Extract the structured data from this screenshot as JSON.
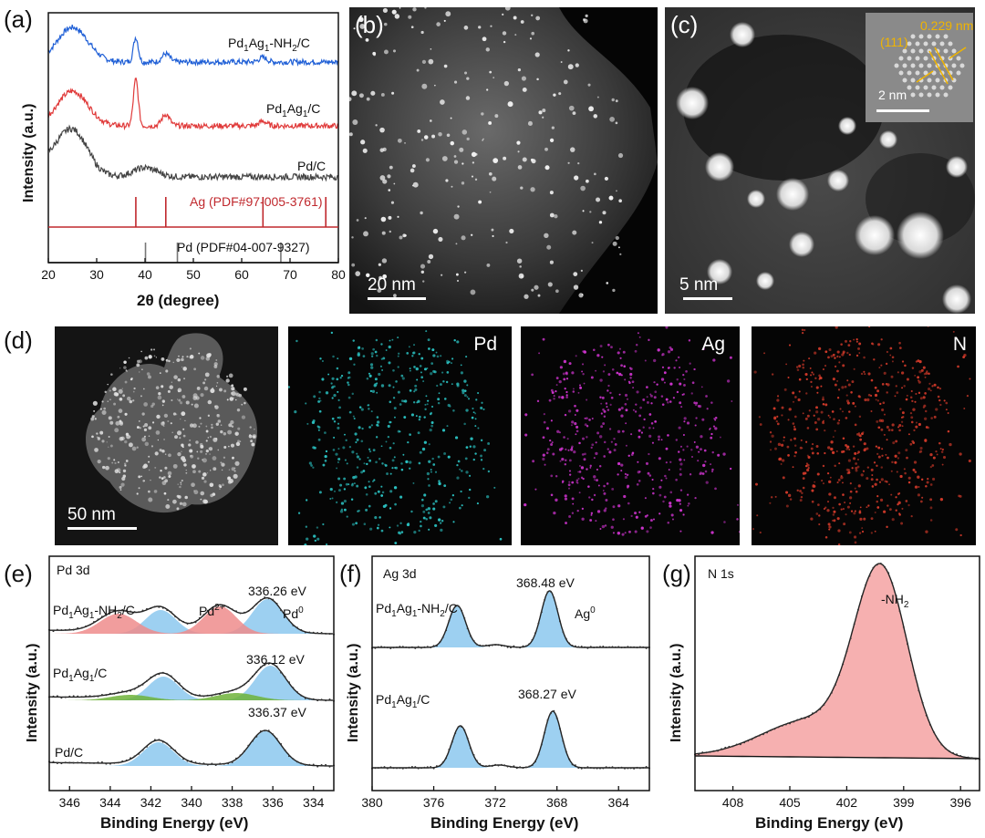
{
  "panels": {
    "a": {
      "letter": "(a)",
      "ylabel": "Intensity (a.u.)",
      "xlabel": "2θ  (degree)",
      "series_labels": [
        "Pd1Ag1-NH2/C",
        "Pd1Ag1/C",
        "Pd/C"
      ],
      "ref_ag": "Ag (PDF#97-005-3761)",
      "ref_pd": "Pd (PDF#04-007-9327)",
      "xticks": [
        "20",
        "30",
        "40",
        "50",
        "60",
        "70",
        "80"
      ],
      "colors": {
        "nh2": "#1f5fd6",
        "pdag": "#e03a3a",
        "pd": "#444444",
        "ag_ref": "#c0282d",
        "pd_ref": "#777777"
      }
    },
    "b": {
      "letter": "(b)",
      "scale": "20 nm"
    },
    "c": {
      "letter": "(c)",
      "scale": "5 nm",
      "inset_scale": "2 nm",
      "d_spacing": "0.229 nm",
      "plane": "(111)",
      "inset_color": "#f0b400"
    },
    "d": {
      "letter": "(d)",
      "scale": "50 nm",
      "maps": [
        {
          "label": "Pd",
          "color": "#2bc3c3"
        },
        {
          "label": "Ag",
          "color": "#cc33cc"
        },
        {
          "label": "N",
          "color": "#d23a2a"
        }
      ]
    },
    "e": {
      "letter": "(e)",
      "title": "Pd 3d",
      "ylabel": "Intensity (a.u.)",
      "xlabel": "Binding Energy (eV)",
      "xticks": [
        "346",
        "344",
        "342",
        "340",
        "338",
        "336",
        "334"
      ],
      "sample_nh2": "Pd1Ag1-NH2/C",
      "sample_pdag": "Pd1Ag1/C",
      "sample_pd": "Pd/C",
      "peak_nh2": "336.26 eV",
      "peak_pdag": "336.12 eV",
      "peak_pd": "336.37 eV",
      "pd2": "Pd2+",
      "pd0": "Pd0"
    },
    "f": {
      "letter": "(f)",
      "title": "Ag 3d",
      "ylabel": "Intensity (a.u.)",
      "xlabel": "Binding Energy (eV)",
      "xticks": [
        "380",
        "376",
        "372",
        "368",
        "364"
      ],
      "sample_nh2": "Pd1Ag1-NH2/C",
      "sample_pdag": "Pd1Ag1/C",
      "peak_nh2": "368.48 eV",
      "peak_pdag": "368.27 eV",
      "ag0": "Ag0"
    },
    "g": {
      "letter": "(g)",
      "title": "N 1s",
      "ylabel": "Intensity (a.u.)",
      "xlabel": "Binding Energy (eV)",
      "xticks": [
        "408",
        "405",
        "402",
        "399",
        "396"
      ],
      "peak": "-NH2"
    }
  },
  "chart_data": [
    {
      "type": "line",
      "panel": "a",
      "xlabel": "2θ  (degree)",
      "ylabel": "Intensity (a.u.)",
      "xlim": [
        20,
        80
      ],
      "series": [
        {
          "name": "Pd1Ag1-NH2/C",
          "peaks_2theta": [
            25,
            38.1,
            44.3,
            64.4,
            77.4
          ]
        },
        {
          "name": "Pd1Ag1/C",
          "peaks_2theta": [
            25,
            38.1,
            44.3,
            64.4,
            77.4
          ]
        },
        {
          "name": "Pd/C",
          "peaks_2theta": [
            25,
            40.1
          ]
        }
      ],
      "reference_lines": [
        {
          "name": "Ag (PDF#97-005-3761)",
          "x": [
            38.1,
            44.3,
            64.4,
            77.4
          ]
        },
        {
          "name": "Pd (PDF#04-007-9327)",
          "x": [
            40.1,
            46.7,
            68.1
          ]
        }
      ]
    },
    {
      "type": "line",
      "panel": "e",
      "title": "Pd 3d",
      "xlabel": "Binding Energy (eV)",
      "xlim": [
        347,
        333
      ],
      "series": [
        {
          "name": "Pd1Ag1-NH2/C",
          "pd0_peak_ev": 336.26
        },
        {
          "name": "Pd1Ag1/C",
          "pd0_peak_ev": 336.12
        },
        {
          "name": "Pd/C",
          "pd0_peak_ev": 336.37
        }
      ]
    },
    {
      "type": "line",
      "panel": "f",
      "title": "Ag 3d",
      "xlabel": "Binding Energy (eV)",
      "xlim": [
        380,
        362
      ],
      "series": [
        {
          "name": "Pd1Ag1-NH2/C",
          "ag0_peak_ev": 368.48
        },
        {
          "name": "Pd1Ag1/C",
          "ag0_peak_ev": 368.27
        }
      ]
    },
    {
      "type": "line",
      "panel": "g",
      "title": "N 1s",
      "xlabel": "Binding Energy (eV)",
      "xlim": [
        410,
        395
      ],
      "series": [
        {
          "name": "-NH2",
          "peak_ev": 400.2
        }
      ]
    }
  ]
}
